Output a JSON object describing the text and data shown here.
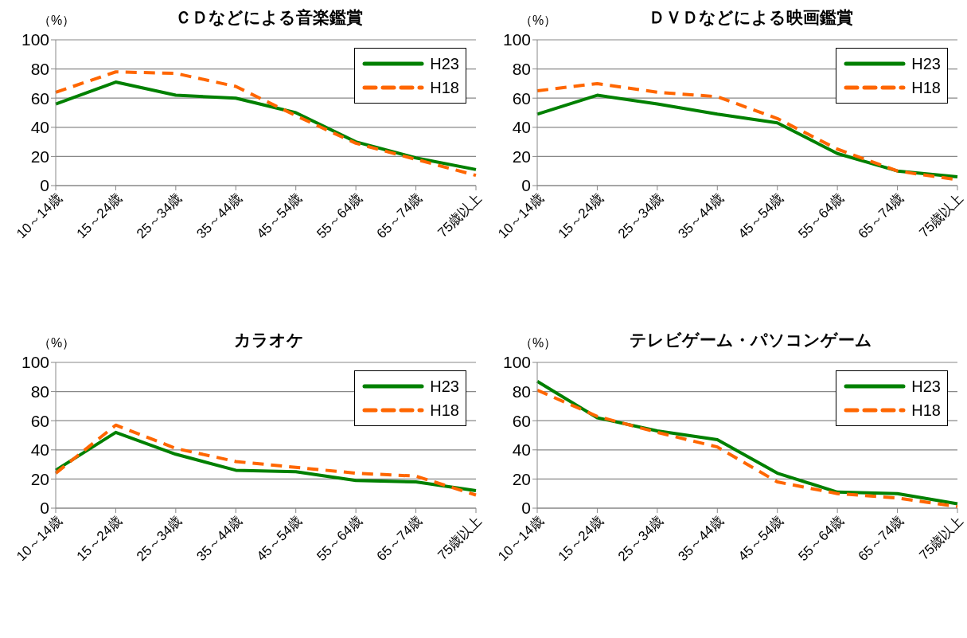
{
  "chart_data": [
    {
      "type": "line",
      "title": "ＣＤなどによる音楽鑑賞",
      "ylabel": "（%）",
      "categories": [
        "10～14歳",
        "15～24歳",
        "25～34歳",
        "35～44歳",
        "45～54歳",
        "55～64歳",
        "65～74歳",
        "75歳以上"
      ],
      "ylim": [
        0,
        100
      ],
      "yticks": [
        0,
        20,
        40,
        60,
        80,
        100
      ],
      "grid": "y",
      "legend": "top right",
      "marker": "none",
      "series": [
        {
          "name": "H23",
          "color": "#008000",
          "line_style": "solid",
          "values": [
            56,
            71,
            62,
            60,
            50,
            30,
            19,
            11
          ]
        },
        {
          "name": "H18",
          "color": "#ff6600",
          "line_style": "dashed",
          "values": [
            64,
            78,
            77,
            68,
            48,
            29,
            18,
            7
          ]
        }
      ]
    },
    {
      "type": "line",
      "title": "ＤＶＤなどによる映画鑑賞",
      "ylabel": "（%）",
      "categories": [
        "10～14歳",
        "15～24歳",
        "25～34歳",
        "35～44歳",
        "45～54歳",
        "55～64歳",
        "65～74歳",
        "75歳以上"
      ],
      "ylim": [
        0,
        100
      ],
      "yticks": [
        0,
        20,
        40,
        60,
        80,
        100
      ],
      "grid": "y",
      "legend": "top right",
      "marker": "none",
      "series": [
        {
          "name": "H23",
          "color": "#008000",
          "line_style": "solid",
          "values": [
            49,
            62,
            56,
            49,
            43,
            22,
            10,
            6
          ]
        },
        {
          "name": "H18",
          "color": "#ff6600",
          "line_style": "dashed",
          "values": [
            65,
            70,
            64,
            61,
            46,
            25,
            10,
            4
          ]
        }
      ]
    },
    {
      "type": "line",
      "title": "カラオケ",
      "ylabel": "（%）",
      "categories": [
        "10～14歳",
        "15～24歳",
        "25～34歳",
        "35～44歳",
        "45～54歳",
        "55～64歳",
        "65～74歳",
        "75歳以上"
      ],
      "ylim": [
        0,
        100
      ],
      "yticks": [
        0,
        20,
        40,
        60,
        80,
        100
      ],
      "grid": "y",
      "legend": "top right",
      "marker": "none",
      "series": [
        {
          "name": "H23",
          "color": "#008000",
          "line_style": "solid",
          "values": [
            26,
            52,
            37,
            26,
            25,
            19,
            18,
            12
          ]
        },
        {
          "name": "H18",
          "color": "#ff6600",
          "line_style": "dashed",
          "values": [
            24,
            57,
            41,
            32,
            28,
            24,
            22,
            9
          ]
        }
      ]
    },
    {
      "type": "line",
      "title": "テレビゲーム・パソコンゲーム",
      "ylabel": "（%）",
      "categories": [
        "10～14歳",
        "15～24歳",
        "25～34歳",
        "35～44歳",
        "45～54歳",
        "55～64歳",
        "65～74歳",
        "75歳以上"
      ],
      "ylim": [
        0,
        100
      ],
      "yticks": [
        0,
        20,
        40,
        60,
        80,
        100
      ],
      "grid": "y",
      "legend": "top right",
      "marker": "none",
      "series": [
        {
          "name": "H23",
          "color": "#008000",
          "line_style": "solid",
          "values": [
            87,
            62,
            53,
            47,
            24,
            11,
            10,
            3
          ]
        },
        {
          "name": "H18",
          "color": "#ff6600",
          "line_style": "dashed",
          "values": [
            81,
            63,
            52,
            42,
            18,
            10,
            7,
            1
          ]
        }
      ]
    }
  ]
}
